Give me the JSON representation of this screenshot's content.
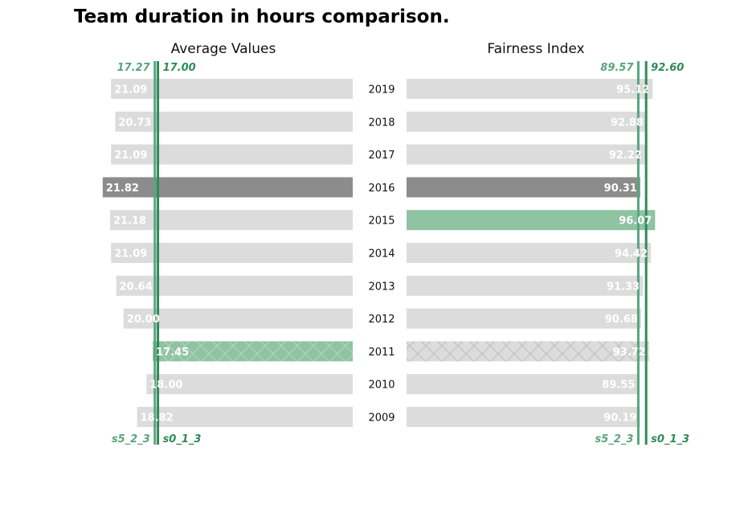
{
  "chart_data": {
    "type": "bar",
    "title": "Team duration in hours comparison.",
    "categories": [
      "2019",
      "2018",
      "2017",
      "2016",
      "2015",
      "2014",
      "2013",
      "2012",
      "2011",
      "2010",
      "2009"
    ],
    "panels": [
      {
        "name": "Average Values",
        "direction": "left",
        "xlim": [
          0,
          23
        ],
        "values": [
          21.09,
          20.73,
          21.09,
          21.82,
          21.18,
          21.09,
          20.64,
          20.0,
          17.45,
          18.0,
          18.82
        ],
        "labels": [
          "21.09",
          "20.73",
          "21.09",
          "21.82",
          "21.18",
          "21.09",
          "20.64",
          "20.00",
          "17.45",
          "18.00",
          "18.82"
        ],
        "references": [
          {
            "name": "s5_2_3",
            "value": 17.27,
            "label": "17.27",
            "color": "#5aa47d"
          },
          {
            "name": "s0_1_3",
            "value": 17.0,
            "label": "17.00",
            "color": "#2e8b57"
          }
        ]
      },
      {
        "name": "Fairness Index",
        "direction": "right",
        "xlim": [
          0,
          100
        ],
        "values": [
          95.12,
          92.88,
          92.22,
          90.31,
          96.07,
          94.42,
          91.33,
          90.68,
          93.72,
          89.55,
          90.19
        ],
        "labels": [
          "95.12",
          "92.88",
          "92.22",
          "90.31",
          "96.07",
          "94.42",
          "91.33",
          "90.68",
          "93.72",
          "89.55",
          "90.19"
        ],
        "references": [
          {
            "name": "s5_2_3",
            "value": 89.57,
            "label": "89.57",
            "color": "#5aa47d"
          },
          {
            "name": "s0_1_3",
            "value": 92.6,
            "label": "92.60",
            "color": "#2e8b57"
          }
        ]
      }
    ],
    "highlight": {
      "best": "2015",
      "worst": "2016",
      "hatched": "2011"
    },
    "colors": {
      "default": "#dcdcdc",
      "best": "#8fc3a2",
      "worst": "#8c8c8c",
      "hatch_line": "#bfbfbf",
      "hatch_on_green": "#b8d6bd"
    }
  }
}
